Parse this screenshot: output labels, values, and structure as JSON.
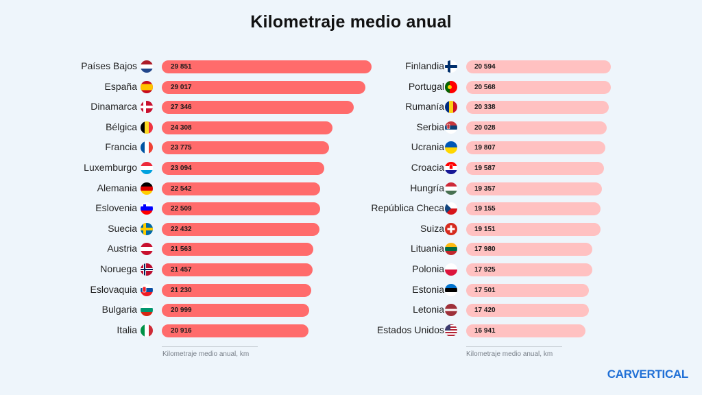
{
  "title": "Kilometraje medio anual",
  "brand": "CARVERTICAL",
  "chart_data": [
    {
      "type": "bar",
      "orientation": "horizontal",
      "xlabel": "Kilometraje medio anual, km",
      "xlim": [
        0,
        29851
      ],
      "color": "#ff6b6b",
      "categories": [
        "Países Bajos",
        "España",
        "Dinamarca",
        "Bélgica",
        "Francia",
        "Luxemburgo",
        "Alemania",
        "Eslovenia",
        "Suecia",
        "Austria",
        "Noruega",
        "Eslovaquia",
        "Bulgaria",
        "Italia"
      ],
      "values": [
        29851,
        29017,
        27346,
        24308,
        23775,
        23094,
        22542,
        22509,
        22432,
        21563,
        21457,
        21230,
        20999,
        20916
      ],
      "labels": [
        "29 851",
        "29 017",
        "27 346",
        "24 308",
        "23 775",
        "23 094",
        "22 542",
        "22 509",
        "22 432",
        "21 563",
        "21 457",
        "21 230",
        "20 999",
        "20 916"
      ],
      "flags": [
        "nl-flag-icon",
        "es-flag-icon",
        "dk-flag-icon",
        "be-flag-icon",
        "fr-flag-icon",
        "lu-flag-icon",
        "de-flag-icon",
        "si-flag-icon",
        "se-flag-icon",
        "at-flag-icon",
        "no-flag-icon",
        "sk-flag-icon",
        "bg-flag-icon",
        "it-flag-icon"
      ]
    },
    {
      "type": "bar",
      "orientation": "horizontal",
      "xlabel": "Kilometraje medio anual, km",
      "xlim": [
        0,
        29851
      ],
      "color": "#ffc1c1",
      "categories": [
        "Finlandia",
        "Portugal",
        "Rumanía",
        "Serbia",
        "Ucrania",
        "Croacia",
        "Hungría",
        "República Checa",
        "Suiza",
        "Lituania",
        "Polonia",
        "Estonia",
        "Letonia",
        "Estados Unidos"
      ],
      "values": [
        20594,
        20568,
        20338,
        20028,
        19807,
        19587,
        19357,
        19155,
        19151,
        17980,
        17925,
        17501,
        17420,
        16941
      ],
      "labels": [
        "20 594",
        "20 568",
        "20 338",
        "20 028",
        "19 807",
        "19 587",
        "19 357",
        "19 155",
        "19 151",
        "17 980",
        "17 925",
        "17 501",
        "17 420",
        "16 941"
      ],
      "flags": [
        "fi-flag-icon",
        "pt-flag-icon",
        "ro-flag-icon",
        "rs-flag-icon",
        "ua-flag-icon",
        "hr-flag-icon",
        "hu-flag-icon",
        "cz-flag-icon",
        "ch-flag-icon",
        "lt-flag-icon",
        "pl-flag-icon",
        "ee-flag-icon",
        "lv-flag-icon",
        "us-flag-icon"
      ]
    }
  ]
}
